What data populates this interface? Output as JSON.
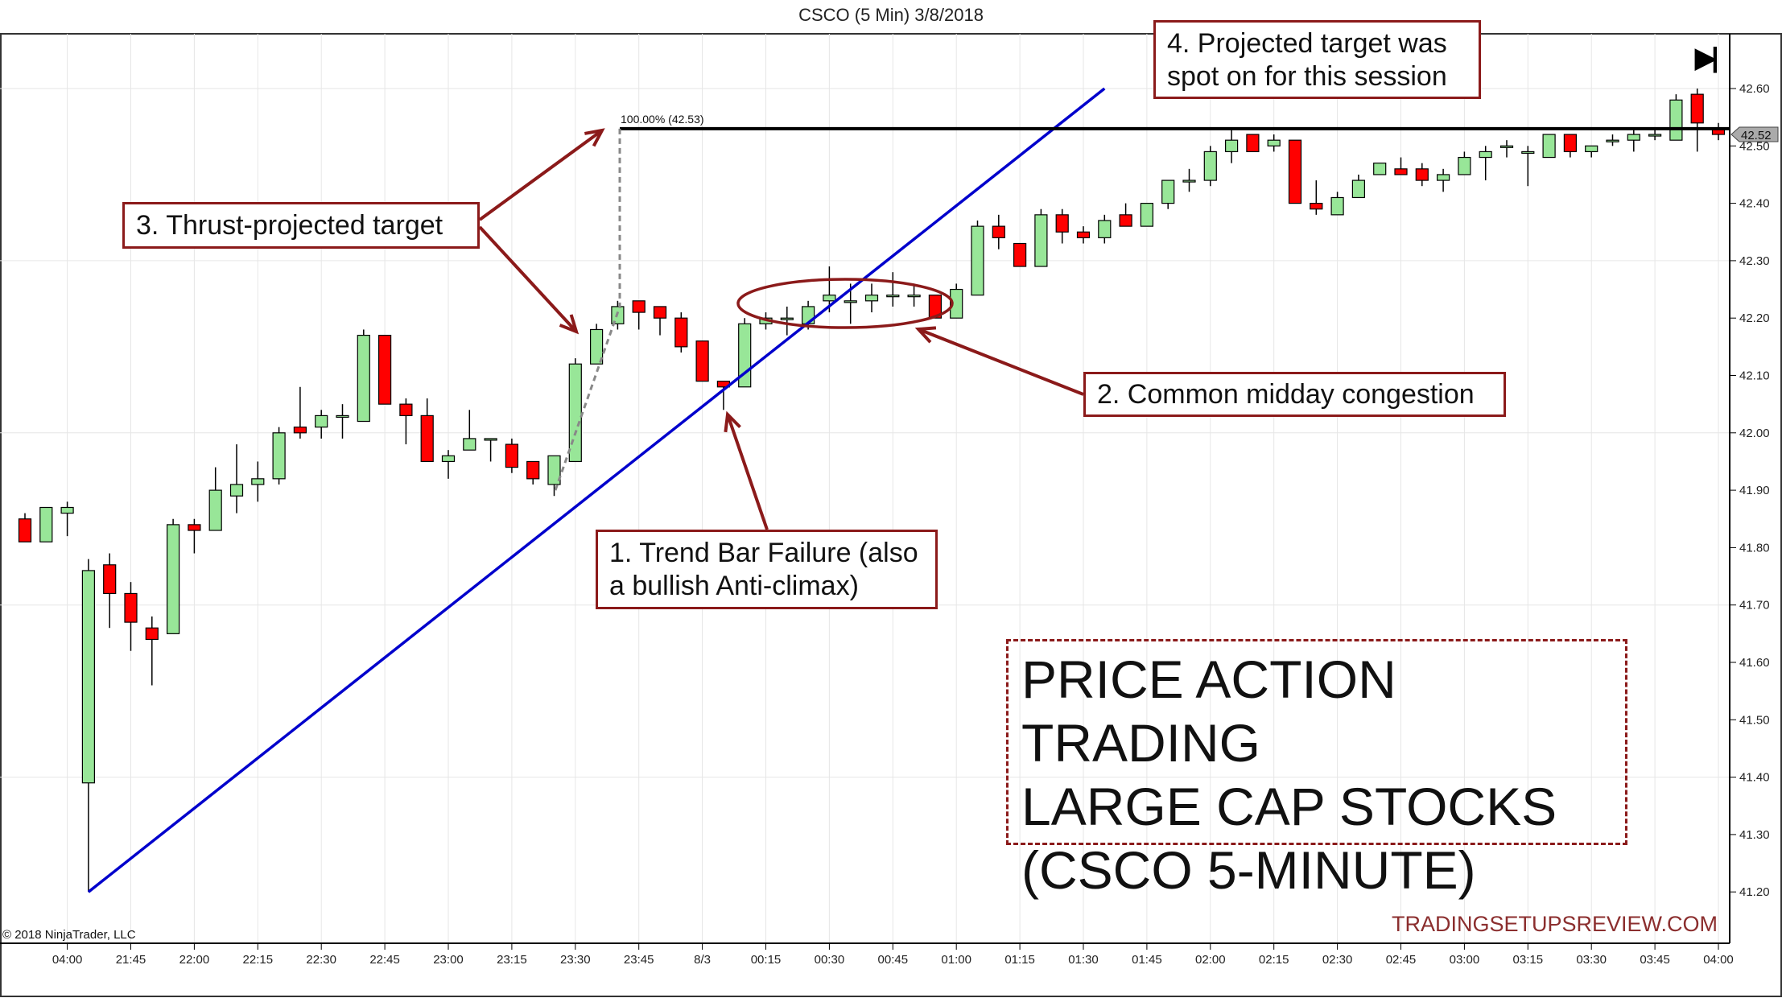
{
  "window": {
    "title": "CSCO (5 Min)  3/8/2018"
  },
  "copyright": "© 2018 NinjaTrader, LLC",
  "watermark": "TRADINGSETUPSREVIEW.COM",
  "end_icon": "skip-to-end-icon",
  "colors": {
    "up": "#98e698",
    "down": "#ff0000",
    "trendline": "#0000cc",
    "annotation": "#8b1a1a",
    "target_line": "#000000"
  },
  "annotations": {
    "note1": [
      "1. Trend Bar Failure (also",
      "a bullish Anti-climax)"
    ],
    "note2": "2. Common midday congestion",
    "note3": "3. Thrust-projected target",
    "note4": [
      "4. Projected target was",
      "spot on for this session"
    ],
    "headline": [
      "PRICE ACTION TRADING",
      "LARGE CAP STOCKS",
      "(CSCO 5-MINUTE)"
    ]
  },
  "chart_data": {
    "type": "candlestick",
    "title": "CSCO (5 Min)  3/8/2018",
    "x_tick_labels": [
      "04:00",
      "21:45",
      "22:00",
      "22:15",
      "22:30",
      "22:45",
      "23:00",
      "23:15",
      "23:30",
      "23:45",
      "8/3",
      "00:15",
      "00:30",
      "00:45",
      "01:00",
      "01:15",
      "01:30",
      "01:45",
      "02:00",
      "02:15",
      "02:30",
      "02:45",
      "03:00",
      "03:15",
      "03:30",
      "03:45",
      "04:00"
    ],
    "y_tick_labels": [
      "42.60",
      "42.50",
      "42.40",
      "42.30",
      "42.20",
      "42.10",
      "42.00",
      "41.90",
      "41.80",
      "41.70",
      "41.60",
      "41.50",
      "41.40",
      "41.30",
      "41.20"
    ],
    "ylim": [
      41.2,
      42.6
    ],
    "last_price": "42.52",
    "fib_label": "100.00% (42.53)",
    "target_price": 42.53,
    "trendline": {
      "from": {
        "bar": 4,
        "price": 41.2
      },
      "to_price_at_bar_52": 42.6
    },
    "ohlc_fields": [
      "open",
      "high",
      "low",
      "close"
    ],
    "candles": [
      [
        41.85,
        41.86,
        41.81,
        41.81
      ],
      [
        41.81,
        41.87,
        41.81,
        41.87
      ],
      [
        41.86,
        41.88,
        41.82,
        41.87
      ],
      [
        41.39,
        41.78,
        41.2,
        41.76
      ],
      [
        41.77,
        41.79,
        41.66,
        41.72
      ],
      [
        41.72,
        41.74,
        41.62,
        41.67
      ],
      [
        41.66,
        41.68,
        41.56,
        41.64
      ],
      [
        41.65,
        41.85,
        41.65,
        41.84
      ],
      [
        41.84,
        41.85,
        41.79,
        41.83
      ],
      [
        41.83,
        41.94,
        41.83,
        41.9
      ],
      [
        41.89,
        41.98,
        41.86,
        41.91
      ],
      [
        41.91,
        41.95,
        41.88,
        41.92
      ],
      [
        41.92,
        42.01,
        41.91,
        42.0
      ],
      [
        42.01,
        42.08,
        41.99,
        42.0
      ],
      [
        42.01,
        42.04,
        41.99,
        42.03
      ],
      [
        42.03,
        42.05,
        41.99,
        42.03
      ],
      [
        42.02,
        42.18,
        42.02,
        42.17
      ],
      [
        42.17,
        42.17,
        42.05,
        42.05
      ],
      [
        42.05,
        42.06,
        41.98,
        42.03
      ],
      [
        42.03,
        42.06,
        41.95,
        41.95
      ],
      [
        41.95,
        41.97,
        41.92,
        41.96
      ],
      [
        41.97,
        42.04,
        41.97,
        41.99
      ],
      [
        41.99,
        41.99,
        41.95,
        41.99
      ],
      [
        41.98,
        41.99,
        41.93,
        41.94
      ],
      [
        41.95,
        41.95,
        41.91,
        41.92
      ],
      [
        41.91,
        41.96,
        41.89,
        41.96
      ],
      [
        41.95,
        42.13,
        41.95,
        42.12
      ],
      [
        42.12,
        42.19,
        42.12,
        42.18
      ],
      [
        42.19,
        42.23,
        42.18,
        42.22
      ],
      [
        42.23,
        42.23,
        42.18,
        42.21
      ],
      [
        42.22,
        42.22,
        42.17,
        42.2
      ],
      [
        42.2,
        42.21,
        42.14,
        42.15
      ],
      [
        42.16,
        42.16,
        42.09,
        42.09
      ],
      [
        42.09,
        42.09,
        42.04,
        42.08
      ],
      [
        42.08,
        42.2,
        42.08,
        42.19
      ],
      [
        42.19,
        42.21,
        42.18,
        42.2
      ],
      [
        42.2,
        42.22,
        42.17,
        42.2
      ],
      [
        42.19,
        42.23,
        42.18,
        42.22
      ],
      [
        42.23,
        42.29,
        42.21,
        42.24
      ],
      [
        42.23,
        42.26,
        42.19,
        42.23
      ],
      [
        42.23,
        42.26,
        42.21,
        42.24
      ],
      [
        42.24,
        42.28,
        42.22,
        42.24
      ],
      [
        42.24,
        42.26,
        42.22,
        42.24
      ],
      [
        42.24,
        42.24,
        42.2,
        42.2
      ],
      [
        42.2,
        42.26,
        42.2,
        42.25
      ],
      [
        42.24,
        42.37,
        42.24,
        42.36
      ],
      [
        42.36,
        42.38,
        42.32,
        42.34
      ],
      [
        42.33,
        42.33,
        42.29,
        42.29
      ],
      [
        42.29,
        42.39,
        42.29,
        42.38
      ],
      [
        42.38,
        42.39,
        42.33,
        42.35
      ],
      [
        42.35,
        42.36,
        42.33,
        42.34
      ],
      [
        42.34,
        42.38,
        42.33,
        42.37
      ],
      [
        42.38,
        42.4,
        42.36,
        42.36
      ],
      [
        42.36,
        42.4,
        42.36,
        42.4
      ],
      [
        42.4,
        42.44,
        42.39,
        42.44
      ],
      [
        42.44,
        42.46,
        42.42,
        42.44
      ],
      [
        42.44,
        42.5,
        42.43,
        42.49
      ],
      [
        42.49,
        42.53,
        42.47,
        42.51
      ],
      [
        42.52,
        42.52,
        42.49,
        42.49
      ],
      [
        42.5,
        42.52,
        42.49,
        42.51
      ],
      [
        42.51,
        42.51,
        42.4,
        42.4
      ],
      [
        42.4,
        42.44,
        42.38,
        42.39
      ],
      [
        42.38,
        42.42,
        42.38,
        42.41
      ],
      [
        42.41,
        42.45,
        42.41,
        42.44
      ],
      [
        42.45,
        42.47,
        42.45,
        42.47
      ],
      [
        42.46,
        42.48,
        42.45,
        42.45
      ],
      [
        42.46,
        42.47,
        42.43,
        42.44
      ],
      [
        42.44,
        42.46,
        42.42,
        42.45
      ],
      [
        42.45,
        42.49,
        42.45,
        42.48
      ],
      [
        42.48,
        42.5,
        42.44,
        42.49
      ],
      [
        42.5,
        42.51,
        42.48,
        42.5
      ],
      [
        42.49,
        42.5,
        42.43,
        42.49
      ],
      [
        42.48,
        42.52,
        42.48,
        42.52
      ],
      [
        42.52,
        42.52,
        42.48,
        42.49
      ],
      [
        42.49,
        42.5,
        42.48,
        42.5
      ],
      [
        42.51,
        42.52,
        42.5,
        42.51
      ],
      [
        42.51,
        42.53,
        42.49,
        42.52
      ],
      [
        42.52,
        42.53,
        42.51,
        42.52
      ],
      [
        42.51,
        42.59,
        42.51,
        42.58
      ],
      [
        42.59,
        42.6,
        42.49,
        42.54
      ],
      [
        42.53,
        42.54,
        42.51,
        42.52
      ]
    ]
  }
}
